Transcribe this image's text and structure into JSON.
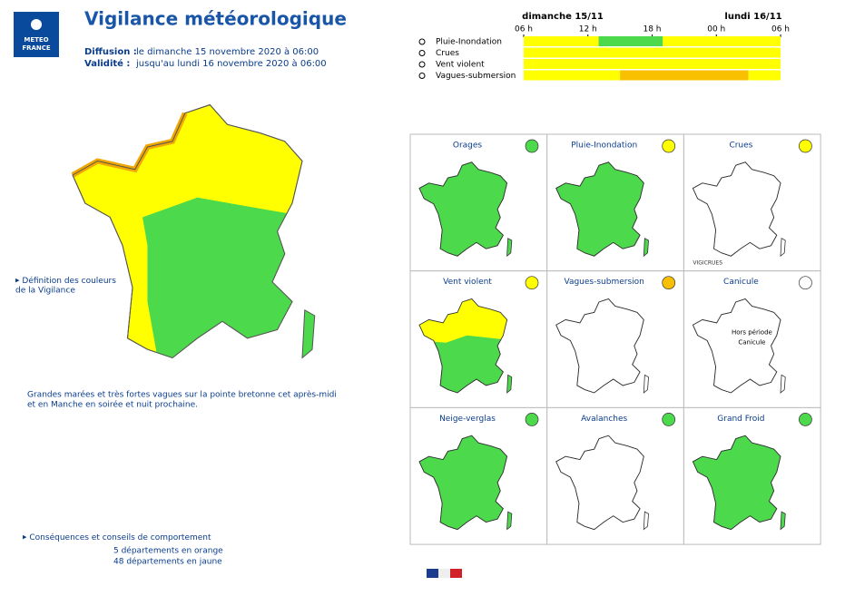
{
  "logo": {
    "line1": "METEO",
    "line2": "FRANCE"
  },
  "header": {
    "title": "Vigilance météorologique",
    "diffusion_label": "Diffusion :",
    "diffusion_value": "le dimanche 15 novembre 2020 à 06:00",
    "validite_label": "Validité :",
    "validite_value": "jusqu'au lundi 16 novembre 2020 à 06:00"
  },
  "timeline": {
    "days": [
      "dimanche 15/11",
      "lundi 16/11"
    ],
    "xlim": [
      0,
      24
    ],
    "xticks": [
      {
        "value": 0,
        "label": "06 h"
      },
      {
        "value": 6,
        "label": "12 h"
      },
      {
        "value": 12,
        "label": "18 h"
      },
      {
        "value": 18,
        "label": "00 h"
      },
      {
        "value": 24,
        "label": "06 h"
      }
    ],
    "rows": [
      {
        "label": "Pluie-Inondation",
        "segments": [
          {
            "from": 0,
            "to": 7,
            "color": "#ffff00"
          },
          {
            "from": 7,
            "to": 13,
            "color": "#4cd94c"
          },
          {
            "from": 13,
            "to": 24,
            "color": "#ffff00"
          }
        ]
      },
      {
        "label": "Crues",
        "segments": [
          {
            "from": 0,
            "to": 24,
            "color": "#ffff00"
          }
        ]
      },
      {
        "label": "Vent violent",
        "segments": [
          {
            "from": 0,
            "to": 24,
            "color": "#ffff00"
          }
        ]
      },
      {
        "label": "Vagues-submersion",
        "segments": [
          {
            "from": 0,
            "to": 9,
            "color": "#ffff00"
          },
          {
            "from": 9,
            "to": 21,
            "color": "#f8c000"
          },
          {
            "from": 21,
            "to": 24,
            "color": "#ffff00"
          }
        ]
      }
    ]
  },
  "left": {
    "definition": [
      "Définition des couleurs",
      "de la Vigilance"
    ],
    "note": [
      "Grandes marées et très fortes vagues sur la pointe bretonne cet après-midi",
      "et en Manche en soirée et nuit prochaine."
    ],
    "consequences": "Conséquences et conseils de comportement",
    "counts": [
      "5 départements en orange",
      "48 départements en jaune"
    ]
  },
  "panels": [
    {
      "title": "Orages",
      "color": "#4cd94c",
      "level_color": "#4cd94c"
    },
    {
      "title": "Pluie-Inondation",
      "color": "#4cd94c",
      "level_color": "#ffff00"
    },
    {
      "title": "Crues",
      "color": "#ffffff",
      "level_color": "#ffff00",
      "label": "VIGICRUES"
    },
    {
      "title": "Vent violent",
      "color": "#4cd94c",
      "north_color": "#ffff00",
      "level_color": "#ffff00"
    },
    {
      "title": "Vagues-submersion",
      "color": "#ffffff",
      "level_color": "#f8c000"
    },
    {
      "title": "Canicule",
      "color": "#ffffff",
      "level_color": "#ffffff",
      "text": [
        "Hors période",
        "Canicule"
      ]
    },
    {
      "title": "Neige-verglas",
      "color": "#4cd94c",
      "level_color": "#4cd94c"
    },
    {
      "title": "Avalanches",
      "color": "#ffffff",
      "level_color": "#4cd94c"
    },
    {
      "title": "Grand Froid",
      "color": "#4cd94c",
      "level_color": "#4cd94c"
    }
  ]
}
